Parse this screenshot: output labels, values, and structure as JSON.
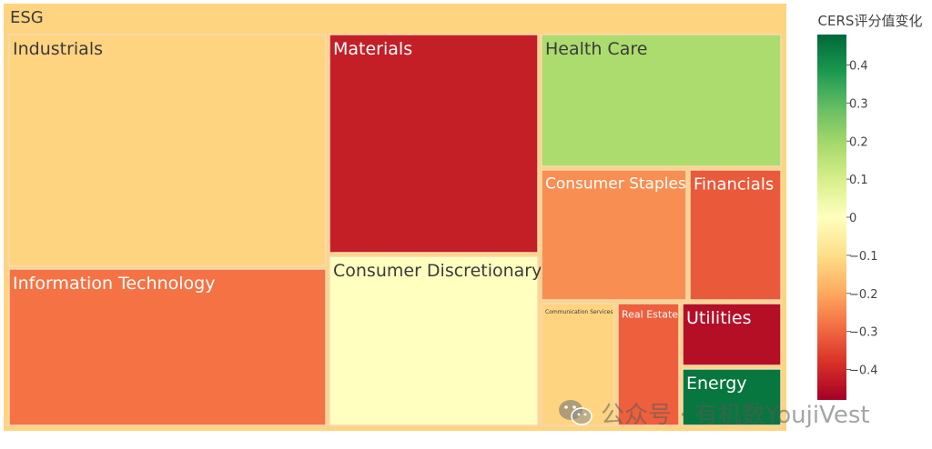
{
  "chart_data": {
    "type": "treemap",
    "root": {
      "label": "ESG",
      "value": -0.12
    },
    "nodes": [
      {
        "label": "Industrials",
        "value": -0.12
      },
      {
        "label": "Information Technology",
        "value": -0.28
      },
      {
        "label": "Materials",
        "value": -0.42
      },
      {
        "label": "Consumer Discretionary",
        "value": 0.0
      },
      {
        "label": "Health Care",
        "value": 0.18
      },
      {
        "label": "Consumer Staples",
        "value": -0.24
      },
      {
        "label": "Financials",
        "value": -0.32
      },
      {
        "label": "Communication Services",
        "value": -0.12
      },
      {
        "label": "Real Estate",
        "value": -0.31
      },
      {
        "label": "Utilities",
        "value": -0.45
      },
      {
        "label": "Energy",
        "value": 0.45
      }
    ],
    "colorbar": {
      "title": "CERS评分值变化",
      "range": [
        -0.48,
        0.48
      ],
      "ticks": [
        0.4,
        0.3,
        0.2,
        0.1,
        0,
        -0.1,
        -0.2,
        -0.3,
        -0.4
      ],
      "tick_labels": [
        "0.4",
        "0.3",
        "0.2",
        "0.1",
        "0",
        "−0.1",
        "−0.2",
        "−0.3",
        "−0.4"
      ],
      "colorscale": "RdYlGn"
    }
  },
  "watermark": {
    "text": "公众号 · 有机数YoujiVest",
    "icon": "wechat-icon"
  }
}
